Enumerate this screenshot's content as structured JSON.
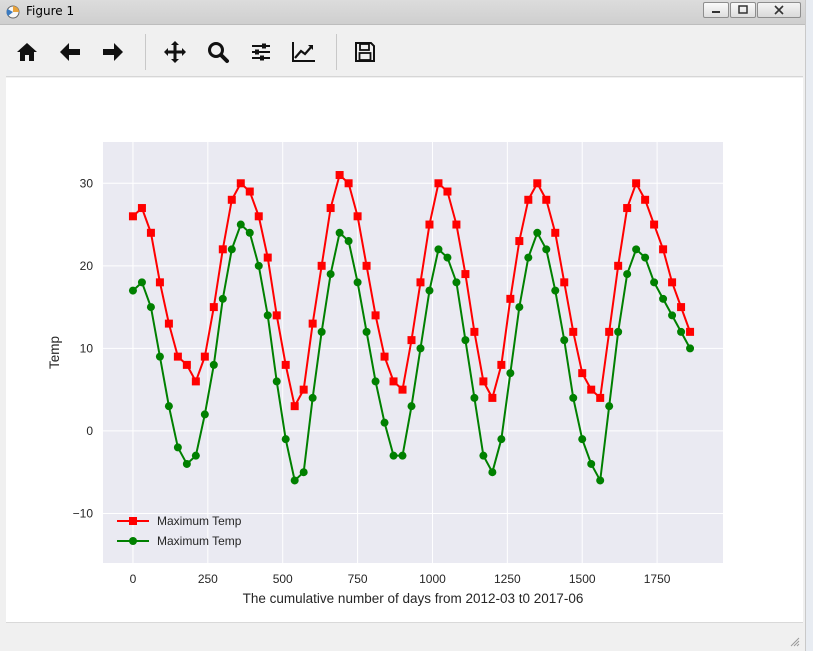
{
  "window": {
    "title": "Figure 1"
  },
  "toolbar": {
    "buttons": [
      {
        "name": "home",
        "icon": "home-icon"
      },
      {
        "name": "back",
        "icon": "arrow-left-icon"
      },
      {
        "name": "forward",
        "icon": "arrow-right-icon"
      },
      {
        "name": "pan",
        "icon": "move-icon"
      },
      {
        "name": "zoom",
        "icon": "magnifier-icon"
      },
      {
        "name": "configure-subplots",
        "icon": "sliders-icon"
      },
      {
        "name": "edit-axis",
        "icon": "line-chart-icon"
      },
      {
        "name": "save",
        "icon": "floppy-disk-icon"
      }
    ]
  },
  "chart_data": {
    "type": "line",
    "title": "",
    "xlabel": "The cumulative number of days from 2012-03 t0 2017-06",
    "ylabel": "Temp",
    "xlim": [
      -100,
      1970
    ],
    "ylim": [
      -16,
      35
    ],
    "xticks": [
      0,
      250,
      500,
      750,
      1000,
      1250,
      1500,
      1750
    ],
    "yticks": [
      -10,
      0,
      10,
      20,
      30
    ],
    "grid": true,
    "background": "#eaeaf2",
    "legend": {
      "placement": "lower-left",
      "entries": [
        "Maximum Temp",
        "Maximum Temp"
      ]
    },
    "series": [
      {
        "name": "Maximum Temp",
        "color": "#ff0000",
        "marker": "square",
        "x": [
          0,
          30,
          60,
          90,
          120,
          150,
          180,
          210,
          240,
          270,
          300,
          330,
          360,
          390,
          420,
          450,
          480,
          510,
          540,
          570,
          600,
          630,
          660,
          690,
          720,
          750,
          780,
          810,
          840,
          870,
          900,
          930,
          960,
          990,
          1020,
          1050,
          1080,
          1110,
          1140,
          1170,
          1200,
          1230,
          1260,
          1290,
          1320,
          1350,
          1380,
          1410,
          1440,
          1470,
          1500,
          1530,
          1560,
          1590,
          1620,
          1650,
          1680,
          1710,
          1740,
          1770,
          1800,
          1830,
          1860
        ],
        "y": [
          26,
          27,
          24,
          18,
          13,
          9,
          8,
          6,
          9,
          15,
          22,
          28,
          30,
          29,
          26,
          21,
          14,
          8,
          3,
          5,
          13,
          20,
          27,
          31,
          30,
          26,
          20,
          14,
          9,
          6,
          5,
          11,
          18,
          25,
          30,
          29,
          25,
          19,
          12,
          6,
          4,
          8,
          16,
          23,
          28,
          30,
          28,
          24,
          18,
          12,
          7,
          5,
          4,
          12,
          20,
          27,
          30,
          28,
          25,
          22,
          18,
          15,
          12
        ]
      },
      {
        "name": "Maximum Temp",
        "color": "#008000",
        "marker": "circle",
        "x": [
          0,
          30,
          60,
          90,
          120,
          150,
          180,
          210,
          240,
          270,
          300,
          330,
          360,
          390,
          420,
          450,
          480,
          510,
          540,
          570,
          600,
          630,
          660,
          690,
          720,
          750,
          780,
          810,
          840,
          870,
          900,
          930,
          960,
          990,
          1020,
          1050,
          1080,
          1110,
          1140,
          1170,
          1200,
          1230,
          1260,
          1290,
          1320,
          1350,
          1380,
          1410,
          1440,
          1470,
          1500,
          1530,
          1560,
          1590,
          1620,
          1650,
          1680,
          1710,
          1740,
          1770,
          1800,
          1830,
          1860
        ],
        "y": [
          17,
          18,
          15,
          9,
          3,
          -2,
          -4,
          -3,
          2,
          8,
          16,
          22,
          25,
          24,
          20,
          14,
          6,
          -1,
          -6,
          -5,
          4,
          12,
          19,
          24,
          23,
          18,
          12,
          6,
          1,
          -3,
          -3,
          3,
          10,
          17,
          22,
          21,
          18,
          11,
          4,
          -3,
          -5,
          -1,
          7,
          15,
          21,
          24,
          22,
          17,
          11,
          4,
          -1,
          -4,
          -6,
          3,
          12,
          19,
          22,
          21,
          18,
          16,
          14,
          12,
          10
        ]
      }
    ]
  }
}
